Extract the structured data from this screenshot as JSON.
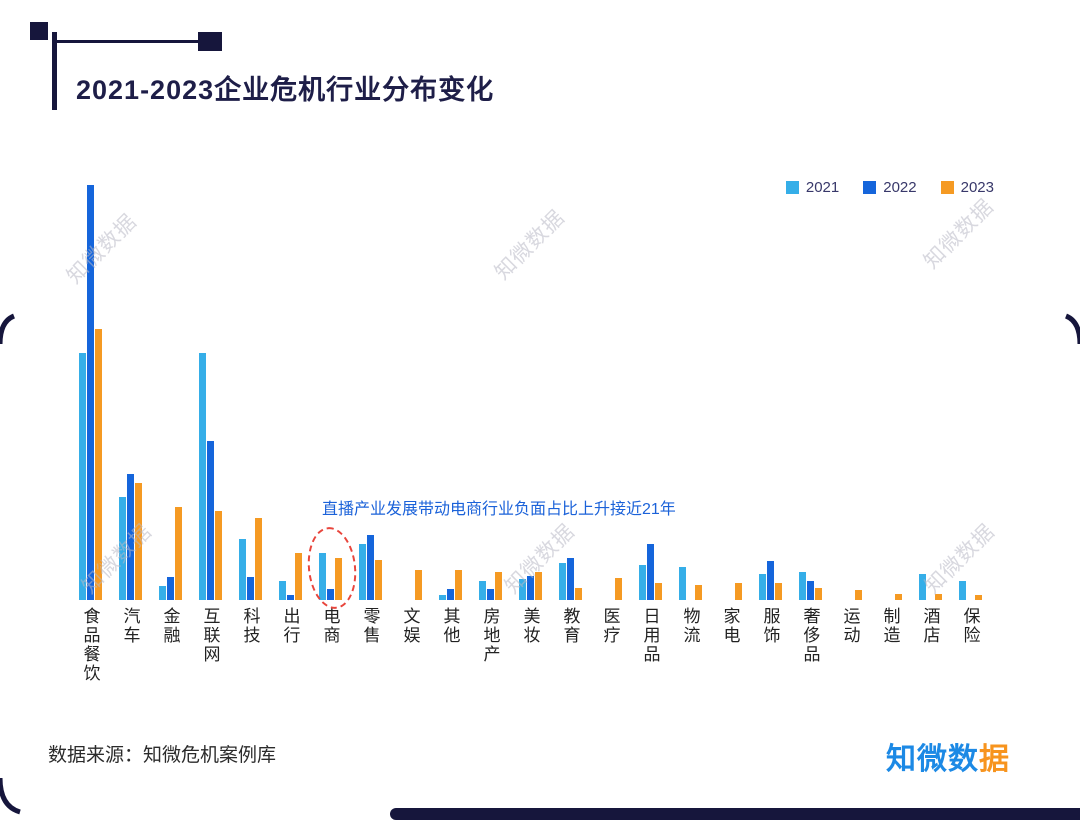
{
  "title": "2021-2023企业危机行业分布变化",
  "annotation": {
    "text": "直播产业发展带动电商行业负面占比上升接近21年",
    "color": "#1B62D9",
    "highlight_category": "电商",
    "highlight_color": "#e8453c"
  },
  "watermark": {
    "text": "知微数据"
  },
  "footer": {
    "source": "数据来源：知微危机案例库",
    "logo_part1": "知微数",
    "logo_part2": "据",
    "logo_color1": "#1C89E5",
    "logo_color2": "#F7941E"
  },
  "colors": {
    "accent_dark": "#16163c",
    "series_2021": "#35AEE8",
    "series_2022": "#1565DB",
    "series_2023": "#F59A23"
  },
  "chart_data": {
    "type": "bar",
    "title": "2021-2023企业危机行业分布变化",
    "categories": [
      "食品餐饮",
      "汽车",
      "金融",
      "互联网",
      "科技",
      "出行",
      "电商",
      "零售",
      "文娱",
      "其他",
      "房地产",
      "美妆",
      "教育",
      "医疗",
      "日用品",
      "物流",
      "家电",
      "服饰",
      "奢侈品",
      "运动",
      "制造",
      "酒店",
      "保险"
    ],
    "series": [
      {
        "name": "2021",
        "color": "#35AEE8",
        "values": [
          26.5,
          11,
          1.5,
          26.5,
          6.5,
          2,
          5,
          6,
          0,
          0.5,
          2,
          2.2,
          4,
          0,
          3.8,
          3.5,
          0,
          2.8,
          3,
          0,
          0,
          2.8,
          2
        ]
      },
      {
        "name": "2022",
        "color": "#1565DB",
        "values": [
          44.5,
          13.5,
          2.5,
          17,
          2.5,
          0.5,
          1.2,
          7,
          0,
          1.2,
          1.2,
          2.6,
          4.5,
          0,
          6,
          0,
          0,
          4.2,
          2,
          0,
          0,
          0,
          0
        ]
      },
      {
        "name": "2023",
        "color": "#F59A23",
        "values": [
          29,
          12.5,
          10,
          9.5,
          8.8,
          5,
          4.5,
          4.3,
          3.2,
          3.2,
          3,
          3,
          1.3,
          2.4,
          1.8,
          1.6,
          1.8,
          1.8,
          1.3,
          1.1,
          0.6,
          0.6,
          0.5
        ]
      }
    ],
    "ylim": [
      0,
      45
    ],
    "unit": "estimated relative share (no axis shown)",
    "grid": false,
    "legend_position": "top-right",
    "xlabel": "",
    "ylabel": ""
  }
}
